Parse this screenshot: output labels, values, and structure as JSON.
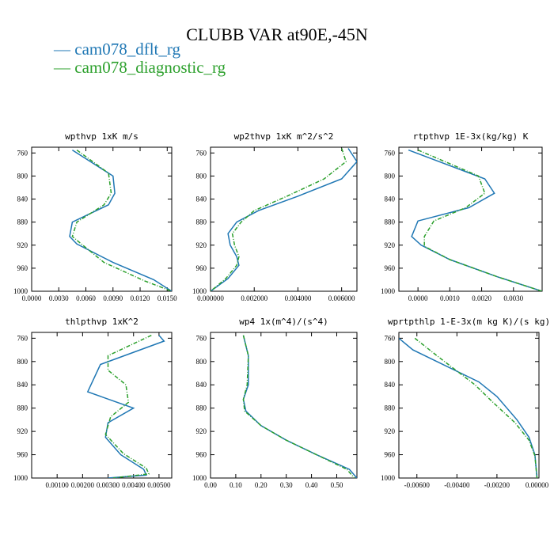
{
  "figure": {
    "title": "CLUBB VAR at90E,-45N",
    "legend": [
      {
        "name": "cam078_dflt_rg",
        "color": "#1f77b4",
        "dash": ""
      },
      {
        "name": "cam078_diagnostic_rg",
        "color": "#2ca02c",
        "dash": "5,2,1,2"
      }
    ]
  },
  "chart_data": [
    {
      "type": "line",
      "title": "wpthvp  1xK m/s",
      "xlim": [
        0.0,
        0.0155
      ],
      "ylim": [
        1000,
        750
      ],
      "xticks": [
        0.0,
        0.003,
        0.006,
        0.009,
        0.012,
        0.015
      ],
      "xtick_labels": [
        "0.0000",
        "0.0030",
        "0.0060",
        "0.0090",
        "0.0120",
        "0.0150"
      ],
      "yticks": [
        760,
        800,
        840,
        880,
        920,
        960,
        1000
      ],
      "ytick_labels": [
        "760",
        "800",
        "840",
        "880",
        "920",
        "960",
        "1000"
      ],
      "series": [
        {
          "name": "cam078_dflt_rg",
          "x": [
            0.0045,
            0.009,
            0.0092,
            0.0085,
            0.0045,
            0.0042,
            0.005,
            0.009,
            0.0135,
            0.0155
          ],
          "y": [
            755,
            800,
            830,
            850,
            880,
            905,
            918,
            950,
            980,
            1000
          ]
        },
        {
          "name": "cam078_diagnostic_rg",
          "x": [
            0.005,
            0.0085,
            0.0088,
            0.008,
            0.005,
            0.0045,
            0.0055,
            0.008,
            0.0125,
            0.0155
          ],
          "y": [
            755,
            795,
            830,
            850,
            880,
            905,
            918,
            950,
            982,
            1000
          ]
        }
      ]
    },
    {
      "type": "line",
      "title": "wp2thvp  1xK m^2/s^2",
      "xlim": [
        0.0,
        0.0067
      ],
      "ylim": [
        1000,
        750
      ],
      "xticks": [
        0.0,
        0.002,
        0.004,
        0.006
      ],
      "xtick_labels": [
        "0.000000",
        "0.002000",
        "0.004000",
        "0.006000"
      ],
      "yticks": [
        760,
        800,
        840,
        880,
        920,
        960,
        1000
      ],
      "ytick_labels": [
        "760",
        "800",
        "840",
        "880",
        "920",
        "960",
        "1000"
      ],
      "series": [
        {
          "name": "cam078_dflt_rg",
          "x": [
            0.0063,
            0.0067,
            0.006,
            0.004,
            0.0022,
            0.0012,
            0.0008,
            0.0009,
            0.0012,
            0.0013,
            0.0008,
            0.0
          ],
          "y": [
            752,
            775,
            805,
            835,
            860,
            880,
            900,
            920,
            940,
            955,
            978,
            1000
          ]
        },
        {
          "name": "cam078_diagnostic_rg",
          "x": [
            0.006,
            0.0062,
            0.0052,
            0.0035,
            0.002,
            0.0014,
            0.001,
            0.0011,
            0.0013,
            0.0012,
            0.0007,
            0.0
          ],
          "y": [
            752,
            775,
            805,
            835,
            860,
            880,
            900,
            920,
            940,
            955,
            978,
            1000
          ]
        }
      ]
    },
    {
      "type": "line",
      "title": "rtpthvp  1E-3x(kg/kg) K",
      "xlim": [
        -0.0006,
        0.0039
      ],
      "ylim": [
        1000,
        750
      ],
      "xticks": [
        0.0,
        0.001,
        0.002,
        0.003
      ],
      "xtick_labels": [
        "0.0000",
        "0.0010",
        "0.0020",
        "0.0030"
      ],
      "yticks": [
        760,
        800,
        840,
        880,
        920,
        960,
        1000
      ],
      "ytick_labels": [
        "760",
        "800",
        "840",
        "880",
        "920",
        "960",
        "1000"
      ],
      "series": [
        {
          "name": "cam078_dflt_rg",
          "x": [
            -0.0003,
            0.0021,
            0.0024,
            0.0016,
            0.0,
            -0.0002,
            0.0001,
            0.001,
            0.0025,
            0.0039
          ],
          "y": [
            755,
            805,
            830,
            855,
            878,
            905,
            920,
            945,
            975,
            1000
          ]
        },
        {
          "name": "cam078_diagnostic_rg",
          "x": [
            0.0,
            0.0019,
            0.0021,
            0.0015,
            0.0005,
            0.0002,
            0.0002,
            0.001,
            0.0025,
            0.0039
          ],
          "y": [
            755,
            800,
            830,
            855,
            878,
            905,
            922,
            945,
            975,
            1000
          ]
        }
      ]
    },
    {
      "type": "line",
      "title": "thlpthvp  1xK^2",
      "xlim": [
        0.0,
        0.0055
      ],
      "ylim": [
        1000,
        750
      ],
      "xticks": [
        0.001,
        0.002,
        0.003,
        0.004,
        0.005
      ],
      "xtick_labels": [
        "0.00100",
        "0.00200",
        "0.00300",
        "0.00400",
        "0.00500"
      ],
      "yticks": [
        760,
        800,
        840,
        880,
        920,
        960,
        1000
      ],
      "ytick_labels": [
        "760",
        "800",
        "840",
        "880",
        "920",
        "960",
        "1000"
      ],
      "series": [
        {
          "name": "cam078_dflt_rg",
          "x": [
            0.005,
            0.0052,
            0.0027,
            0.0022,
            0.004,
            0.003,
            0.0029,
            0.0035,
            0.0044,
            0.0045,
            0.003
          ],
          "y": [
            755,
            765,
            805,
            852,
            880,
            905,
            930,
            960,
            985,
            995,
            1000
          ]
        },
        {
          "name": "cam078_diagnostic_rg",
          "x": [
            0.0047,
            0.003,
            0.003,
            0.0037,
            0.0038,
            0.0031,
            0.0029,
            0.0036,
            0.0045,
            0.0046,
            0.0032
          ],
          "y": [
            755,
            790,
            815,
            840,
            870,
            895,
            925,
            958,
            983,
            993,
            1000
          ]
        }
      ]
    },
    {
      "type": "line",
      "title": "wp4  1x(m^4)/(s^4)",
      "xlim": [
        0.0,
        0.58
      ],
      "ylim": [
        1000,
        750
      ],
      "xticks": [
        0.0,
        0.1,
        0.2,
        0.3,
        0.4,
        0.5
      ],
      "xtick_labels": [
        "0.00",
        "0.10",
        "0.20",
        "0.30",
        "0.40",
        "0.50"
      ],
      "yticks": [
        760,
        800,
        840,
        880,
        920,
        960,
        1000
      ],
      "ytick_labels": [
        "760",
        "800",
        "840",
        "880",
        "920",
        "960",
        "1000"
      ],
      "series": [
        {
          "name": "cam078_dflt_rg",
          "x": [
            0.13,
            0.15,
            0.15,
            0.13,
            0.14,
            0.2,
            0.3,
            0.42,
            0.55,
            0.58
          ],
          "y": [
            755,
            790,
            840,
            865,
            885,
            910,
            935,
            960,
            985,
            1000
          ]
        },
        {
          "name": "cam078_diagnostic_rg",
          "x": [
            0.13,
            0.15,
            0.145,
            0.13,
            0.135,
            0.2,
            0.3,
            0.42,
            0.54,
            0.57
          ],
          "y": [
            755,
            790,
            840,
            865,
            885,
            910,
            935,
            960,
            985,
            1000
          ]
        }
      ]
    },
    {
      "type": "line",
      "title": "wprtpthlp  1-E-3x(m kg K)/(s kg)",
      "xlim": [
        -0.0069,
        0.0001
      ],
      "ylim": [
        1000,
        750
      ],
      "xticks": [
        -0.006,
        -0.004,
        -0.002,
        0.0
      ],
      "xtick_labels": [
        "-0.00600",
        "-0.00400",
        "-0.00200",
        "0.00000"
      ],
      "yticks": [
        760,
        800,
        840,
        880,
        920,
        960,
        1000
      ],
      "ytick_labels": [
        "760",
        "800",
        "840",
        "880",
        "920",
        "960",
        "1000"
      ],
      "series": [
        {
          "name": "cam078_dflt_rg",
          "x": [
            -0.0069,
            -0.0062,
            -0.0029,
            -0.002,
            -0.001,
            -0.0004,
            -0.0001,
            0.0
          ],
          "y": [
            760,
            780,
            835,
            860,
            900,
            930,
            960,
            1000
          ]
        },
        {
          "name": "cam078_diagnostic_rg",
          "x": [
            -0.0061,
            -0.005,
            -0.0031,
            -0.0022,
            -0.0011,
            -0.0004,
            -0.0001,
            0.0
          ],
          "y": [
            760,
            790,
            840,
            870,
            905,
            935,
            962,
            1000
          ]
        }
      ]
    }
  ]
}
